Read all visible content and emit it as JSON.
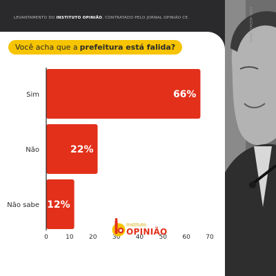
{
  "header": {
    "prefix": "LEVANTAMENTO DO",
    "institute": "INSTITUTO OPINIÃO",
    "suffix": ", CONTRATADO PELO JORNAL OPINIÃO CE."
  },
  "photo_credit": "FOTO: AGÊNCIA BRASIL",
  "question": {
    "prefix": "Você acha que a",
    "emphasis": "prefeitura está falida?"
  },
  "colors": {
    "bar": "#e2301a",
    "highlight": "#f6c400",
    "background": "#2a2a2c",
    "card": "#ffffff"
  },
  "chart_data": {
    "type": "bar",
    "orientation": "horizontal",
    "categories": [
      "Sim",
      "Não",
      "Não sabe"
    ],
    "values": [
      66,
      22,
      12
    ],
    "value_labels": [
      "66%",
      "22%",
      "12%"
    ],
    "xlim": [
      0,
      70
    ],
    "xticks": [
      0,
      10,
      20,
      30,
      40,
      50,
      60,
      70
    ],
    "title": "",
    "xlabel": "",
    "ylabel": "",
    "grid": false,
    "legend": "none"
  },
  "logo": {
    "small": "Instituto",
    "big": "OPINIÃO"
  }
}
